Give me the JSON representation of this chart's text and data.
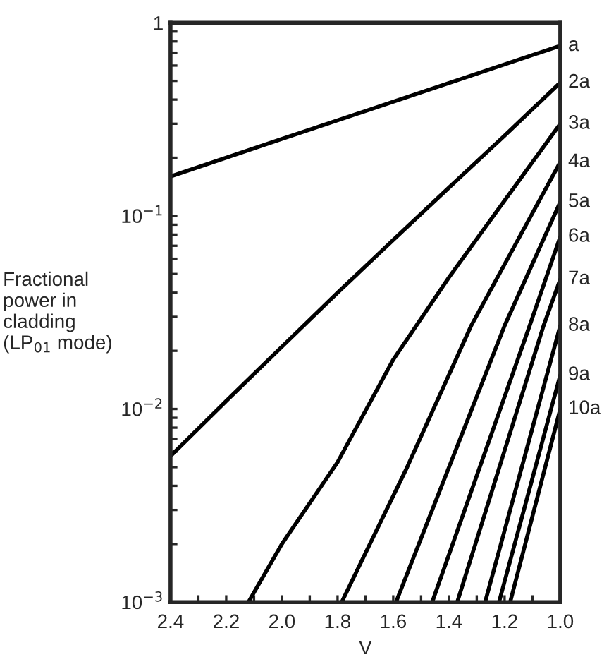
{
  "chart_data": {
    "type": "line",
    "xlabel": "V",
    "ylabel": "Fractional\npower in\ncladding\n(LP$_{01}$ mode)",
    "log": "y",
    "grid": false,
    "legend": false,
    "marker": "none",
    "line_style": "solid",
    "xlim": [
      2.4,
      1.0
    ],
    "ylim": [
      0.001,
      1
    ],
    "xticks": [
      2.4,
      {
        "value": 2.3,
        "label": null
      },
      2.2,
      {
        "value": 2.1,
        "label": null
      },
      {
        "value": 2.0,
        "label": "2.0"
      },
      {
        "value": 1.9,
        "label": null
      },
      1.8,
      {
        "value": 1.7,
        "label": null
      },
      1.6,
      {
        "value": 1.5,
        "label": null
      },
      1.4,
      {
        "value": 1.3,
        "label": null
      },
      1.2,
      {
        "value": 1.1,
        "label": null
      },
      {
        "value": 1.0,
        "label": "1.0"
      }
    ],
    "yticks": [
      {
        "value": 0.001,
        "label": "10$^{−3}$"
      },
      {
        "value": 0.002,
        "label": null
      },
      {
        "value": 0.003,
        "label": null
      },
      {
        "value": 0.004,
        "label": null
      },
      {
        "value": 0.005,
        "label": null
      },
      {
        "value": 0.006,
        "label": null
      },
      {
        "value": 0.007,
        "label": null
      },
      {
        "value": 0.008,
        "label": null
      },
      {
        "value": 0.009,
        "label": null
      },
      {
        "value": 0.01,
        "label": "10$^{−2}$"
      },
      {
        "value": 0.02,
        "label": null
      },
      {
        "value": 0.03,
        "label": null
      },
      {
        "value": 0.04,
        "label": null
      },
      {
        "value": 0.05,
        "label": null
      },
      {
        "value": 0.06,
        "label": null
      },
      {
        "value": 0.07,
        "label": null
      },
      {
        "value": 0.08,
        "label": null
      },
      {
        "value": 0.09,
        "label": null
      },
      {
        "value": 0.1,
        "label": "10$^{−1}$"
      },
      {
        "value": 0.2,
        "label": null
      },
      {
        "value": 0.3,
        "label": null
      },
      {
        "value": 0.4,
        "label": null
      },
      {
        "value": 0.5,
        "label": null
      },
      {
        "value": 0.6,
        "label": null
      },
      {
        "value": 0.7,
        "label": null
      },
      {
        "value": 0.8,
        "label": null
      },
      {
        "value": 0.9,
        "label": null
      },
      1
    ],
    "series": [
      {
        "name": "a",
        "color": "#000000",
        "x": [
          2.4,
          2.0,
          1.6,
          1.0
        ],
        "values": [
          0.16,
          0.25,
          0.39,
          0.76
        ]
      },
      {
        "name": "2a",
        "color": "#000000",
        "x": [
          2.4,
          2.2,
          2.0,
          1.8,
          1.6,
          1.4,
          1.2,
          1.0
        ],
        "values": [
          0.0057,
          0.011,
          0.021,
          0.04,
          0.075,
          0.14,
          0.26,
          0.49
        ]
      },
      {
        "name": "3a",
        "color": "#000000",
        "x": [
          2.12,
          2.0,
          1.8,
          1.6,
          1.4,
          1.2,
          1.0
        ],
        "values": [
          0.001,
          0.002,
          0.0053,
          0.018,
          0.048,
          0.12,
          0.3
        ]
      },
      {
        "name": "4a",
        "color": "#000000",
        "x": [
          1.785,
          1.55,
          1.32,
          1.0
        ],
        "values": [
          0.001,
          0.005,
          0.027,
          0.19
        ]
      },
      {
        "name": "5a",
        "color": "#000000",
        "x": [
          1.59,
          1.2,
          1.0
        ],
        "values": [
          0.001,
          0.027,
          0.118
        ]
      },
      {
        "name": "6a",
        "color": "#000000",
        "x": [
          1.46,
          1.11,
          1.0
        ],
        "values": [
          0.001,
          0.027,
          0.078
        ]
      },
      {
        "name": "7a",
        "color": "#000000",
        "x": [
          1.37,
          1.06,
          1.0
        ],
        "values": [
          0.001,
          0.027,
          0.047
        ]
      },
      {
        "name": "8a",
        "color": "#000000",
        "x": [
          1.27,
          1.0
        ],
        "values": [
          0.001,
          0.027
        ]
      },
      {
        "name": "9a",
        "color": "#000000",
        "x": [
          1.22,
          1.0
        ],
        "values": [
          0.001,
          0.015
        ]
      },
      {
        "name": "10a",
        "color": "#000000",
        "x": [
          1.18,
          1.0
        ],
        "values": [
          0.001,
          0.01
        ]
      }
    ]
  }
}
